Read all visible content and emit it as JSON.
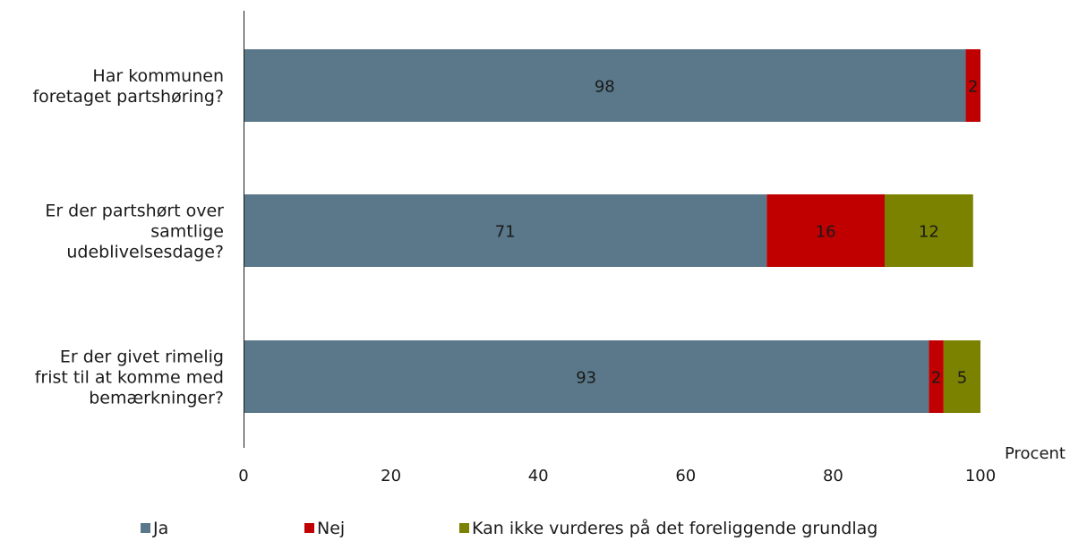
{
  "chart_data": {
    "type": "bar",
    "orientation": "horizontal",
    "stacked": true,
    "categories": [
      [
        "Har kommunen",
        "foretaget partshøring?"
      ],
      [
        "Er der partshørt over",
        "samtlige",
        "udeblivelsesdage?"
      ],
      [
        "Er der givet rimelig",
        "frist til at komme med",
        "bemærkninger?"
      ]
    ],
    "series": [
      {
        "name": "Ja",
        "color": "#5a7889",
        "values": [
          98,
          71,
          93
        ],
        "labels": [
          "98",
          "71",
          "93"
        ]
      },
      {
        "name": "Nej",
        "color": "#c00000",
        "values": [
          2,
          16,
          2
        ],
        "labels": [
          "2",
          "16",
          "2"
        ]
      },
      {
        "name": "Kan ikke vurderes på det foreliggende grundlag",
        "color": "#7a8200",
        "values": [
          0,
          12,
          5
        ],
        "labels": [
          "",
          "12",
          "5"
        ]
      }
    ],
    "xlabel": "Procent",
    "xlim": [
      0,
      100
    ],
    "xticks": [
      "0",
      "20",
      "40",
      "60",
      "80",
      "100"
    ],
    "grid": false,
    "legend": "bottom"
  }
}
